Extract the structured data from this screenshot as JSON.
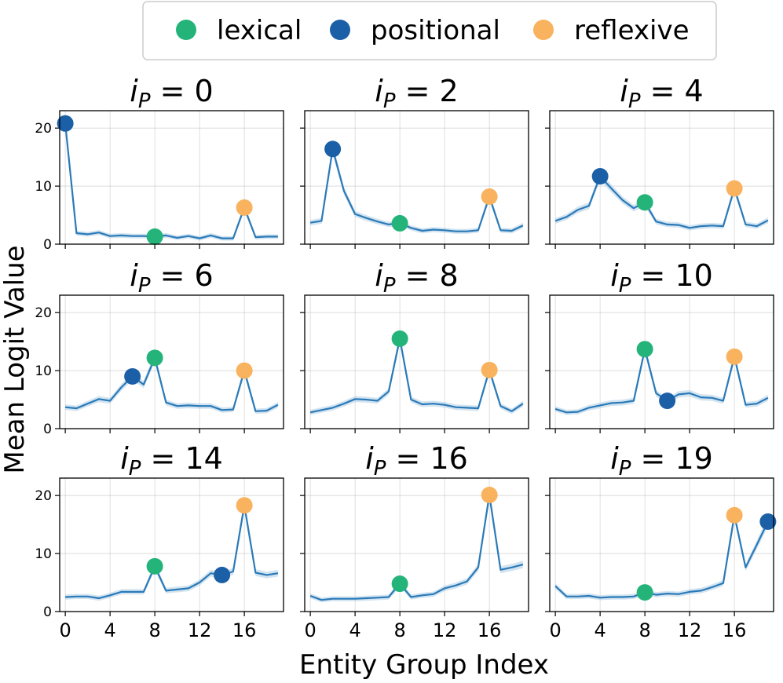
{
  "chart_data": {
    "type": "line",
    "layout": "3x3 grid of panels",
    "ylabel": "Mean Logit Value",
    "xlabel": "Entity Group Index",
    "xlim": [
      -0.5,
      19.5
    ],
    "ylim": [
      0,
      23
    ],
    "xticks": [
      "0",
      "4",
      "8",
      "12",
      "16"
    ],
    "yticks": [
      "0",
      "10",
      "20"
    ],
    "legend": {
      "position": "top",
      "entries": [
        {
          "label": "lexical",
          "color": "#24b479"
        },
        {
          "label": "positional",
          "color": "#1b5fa6"
        },
        {
          "label": "reflexive",
          "color": "#f9b25e"
        }
      ]
    },
    "line_color": "#2a7ab8",
    "panels": [
      {
        "title_var": "i",
        "title_sub": "P",
        "title_eq": " = ",
        "title_value": "0",
        "values": [
          20.8,
          1.9,
          1.7,
          2.0,
          1.4,
          1.5,
          1.4,
          1.4,
          1.3,
          1.5,
          1.1,
          1.4,
          1.0,
          1.5,
          1.0,
          1.0,
          6.3,
          1.2,
          1.3,
          1.3
        ],
        "markers": [
          {
            "kind": "positional",
            "x": 0,
            "y": 20.8
          },
          {
            "kind": "lexical",
            "x": 8,
            "y": 1.3
          },
          {
            "kind": "reflexive",
            "x": 16,
            "y": 6.3
          }
        ]
      },
      {
        "title_var": "i",
        "title_sub": "P",
        "title_eq": " = ",
        "title_value": "2",
        "values": [
          3.7,
          4.0,
          16.4,
          9.2,
          5.2,
          4.5,
          3.9,
          3.4,
          3.6,
          2.8,
          2.3,
          2.5,
          2.4,
          2.2,
          2.2,
          2.4,
          8.2,
          2.4,
          2.3,
          3.2
        ],
        "markers": [
          {
            "kind": "positional",
            "x": 2,
            "y": 16.4
          },
          {
            "kind": "lexical",
            "x": 8,
            "y": 3.6
          },
          {
            "kind": "reflexive",
            "x": 16,
            "y": 8.2
          }
        ]
      },
      {
        "title_var": "i",
        "title_sub": "P",
        "title_eq": " = ",
        "title_value": "4",
        "values": [
          4.0,
          4.7,
          5.9,
          6.6,
          11.7,
          9.6,
          7.6,
          6.2,
          7.2,
          3.9,
          3.4,
          3.3,
          2.8,
          3.1,
          3.2,
          3.1,
          9.6,
          3.4,
          3.1,
          4.1
        ],
        "markers": [
          {
            "kind": "positional",
            "x": 4,
            "y": 11.7
          },
          {
            "kind": "lexical",
            "x": 8,
            "y": 7.2
          },
          {
            "kind": "reflexive",
            "x": 16,
            "y": 9.6
          }
        ]
      },
      {
        "title_var": "i",
        "title_sub": "P",
        "title_eq": " = ",
        "title_value": "6",
        "values": [
          3.7,
          3.5,
          4.3,
          5.1,
          4.8,
          7.1,
          9.0,
          7.6,
          12.2,
          4.5,
          3.9,
          4.0,
          3.9,
          3.9,
          3.2,
          3.3,
          10.0,
          3.0,
          3.1,
          4.1
        ],
        "markers": [
          {
            "kind": "positional",
            "x": 6,
            "y": 9.0
          },
          {
            "kind": "lexical",
            "x": 8,
            "y": 12.2
          },
          {
            "kind": "reflexive",
            "x": 16,
            "y": 10.0
          }
        ]
      },
      {
        "title_var": "i",
        "title_sub": "P",
        "title_eq": " = ",
        "title_value": "8",
        "values": [
          2.8,
          3.2,
          3.6,
          4.3,
          5.1,
          5.0,
          4.8,
          6.4,
          15.5,
          5.0,
          4.2,
          4.3,
          4.1,
          3.7,
          3.6,
          3.5,
          10.1,
          3.9,
          3.0,
          4.3
        ],
        "markers": [
          {
            "kind": "lexical",
            "x": 8,
            "y": 15.5
          },
          {
            "kind": "reflexive",
            "x": 16,
            "y": 10.1
          }
        ]
      },
      {
        "title_var": "i",
        "title_sub": "P",
        "title_eq": " = ",
        "title_value": "10",
        "values": [
          3.4,
          2.8,
          2.9,
          3.6,
          4.0,
          4.4,
          4.5,
          4.8,
          13.7,
          6.1,
          4.8,
          5.9,
          6.1,
          5.4,
          5.3,
          4.8,
          12.4,
          4.1,
          4.3,
          5.3
        ],
        "markers": [
          {
            "kind": "positional",
            "x": 10,
            "y": 4.8
          },
          {
            "kind": "lexical",
            "x": 8,
            "y": 13.7
          },
          {
            "kind": "reflexive",
            "x": 16,
            "y": 12.4
          }
        ]
      },
      {
        "title_var": "i",
        "title_sub": "P",
        "title_eq": " = ",
        "title_value": "14",
        "values": [
          2.5,
          2.6,
          2.6,
          2.3,
          2.8,
          3.4,
          3.4,
          3.4,
          7.8,
          3.6,
          3.8,
          4.0,
          5.0,
          6.6,
          6.3,
          6.9,
          18.3,
          6.7,
          6.3,
          6.6
        ],
        "markers": [
          {
            "kind": "positional",
            "x": 14,
            "y": 6.3
          },
          {
            "kind": "lexical",
            "x": 8,
            "y": 7.8
          },
          {
            "kind": "reflexive",
            "x": 16,
            "y": 18.3
          }
        ]
      },
      {
        "title_var": "i",
        "title_sub": "P",
        "title_eq": " = ",
        "title_value": "16",
        "values": [
          2.7,
          2.0,
          2.2,
          2.2,
          2.2,
          2.3,
          2.4,
          2.5,
          4.8,
          2.5,
          2.8,
          3.0,
          4.0,
          4.5,
          5.2,
          7.6,
          20.1,
          7.2,
          7.6,
          8.1
        ],
        "markers": [
          {
            "kind": "lexical",
            "x": 8,
            "y": 4.8
          },
          {
            "kind": "reflexive",
            "x": 16,
            "y": 20.1
          }
        ]
      },
      {
        "title_var": "i",
        "title_sub": "P",
        "title_eq": " = ",
        "title_value": "19",
        "values": [
          4.4,
          2.6,
          2.6,
          2.7,
          2.4,
          2.5,
          2.5,
          2.6,
          3.3,
          2.9,
          3.1,
          3.0,
          3.4,
          3.6,
          4.2,
          4.9,
          16.6,
          7.6,
          11.5,
          15.5
        ],
        "markers": [
          {
            "kind": "positional",
            "x": 19,
            "y": 15.5
          },
          {
            "kind": "lexical",
            "x": 8,
            "y": 3.3
          },
          {
            "kind": "reflexive",
            "x": 16,
            "y": 16.6
          }
        ]
      }
    ]
  }
}
